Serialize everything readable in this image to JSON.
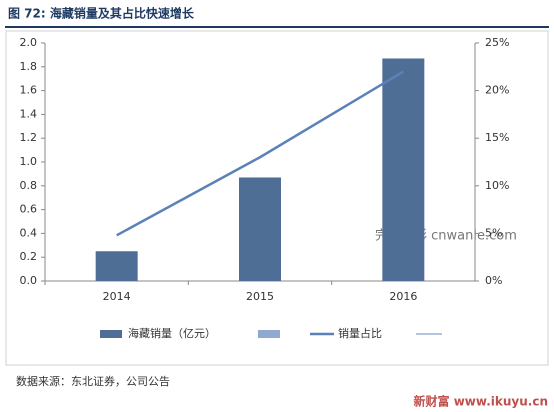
{
  "chart_data": {
    "type": "bar",
    "title": "图 72: 海藏销量及其占比快速增长",
    "categories": [
      "2014",
      "2015",
      "2016"
    ],
    "series": [
      {
        "name": "海藏销量（亿元）",
        "color": "#4f6e96",
        "values": [
          0.25,
          0.87,
          1.87
        ]
      },
      {
        "name": "销量占比",
        "color": "#5b82b8",
        "axis": "y2",
        "type": "line",
        "values": [
          4.8,
          13,
          22
        ]
      }
    ],
    "ylim": [
      0,
      2
    ],
    "yticks": [
      {
        "value": 0,
        "label": "0.0"
      },
      0.2,
      0.4,
      0.6,
      0.8,
      {
        "value": 1,
        "label": "1.0"
      },
      1.2,
      1.4,
      1.6,
      1.8,
      {
        "value": 2,
        "label": "2.0"
      }
    ],
    "y2lim": [
      0,
      25
    ],
    "y2ticks": [
      {
        "value": 0,
        "label": "0%"
      },
      {
        "value": 5,
        "label": "5%"
      },
      {
        "value": 10,
        "label": "10%"
      },
      {
        "value": 15,
        "label": "15%"
      },
      {
        "value": 20,
        "label": "20%"
      },
      {
        "value": 25,
        "label": "25%"
      }
    ],
    "grid": false,
    "legend": "bottom",
    "source": "数据来源：东北证券，公司公告",
    "watermarks": [
      "完美整形 cnwanle.com",
      "新财富 www.ikuyu.cn"
    ]
  }
}
